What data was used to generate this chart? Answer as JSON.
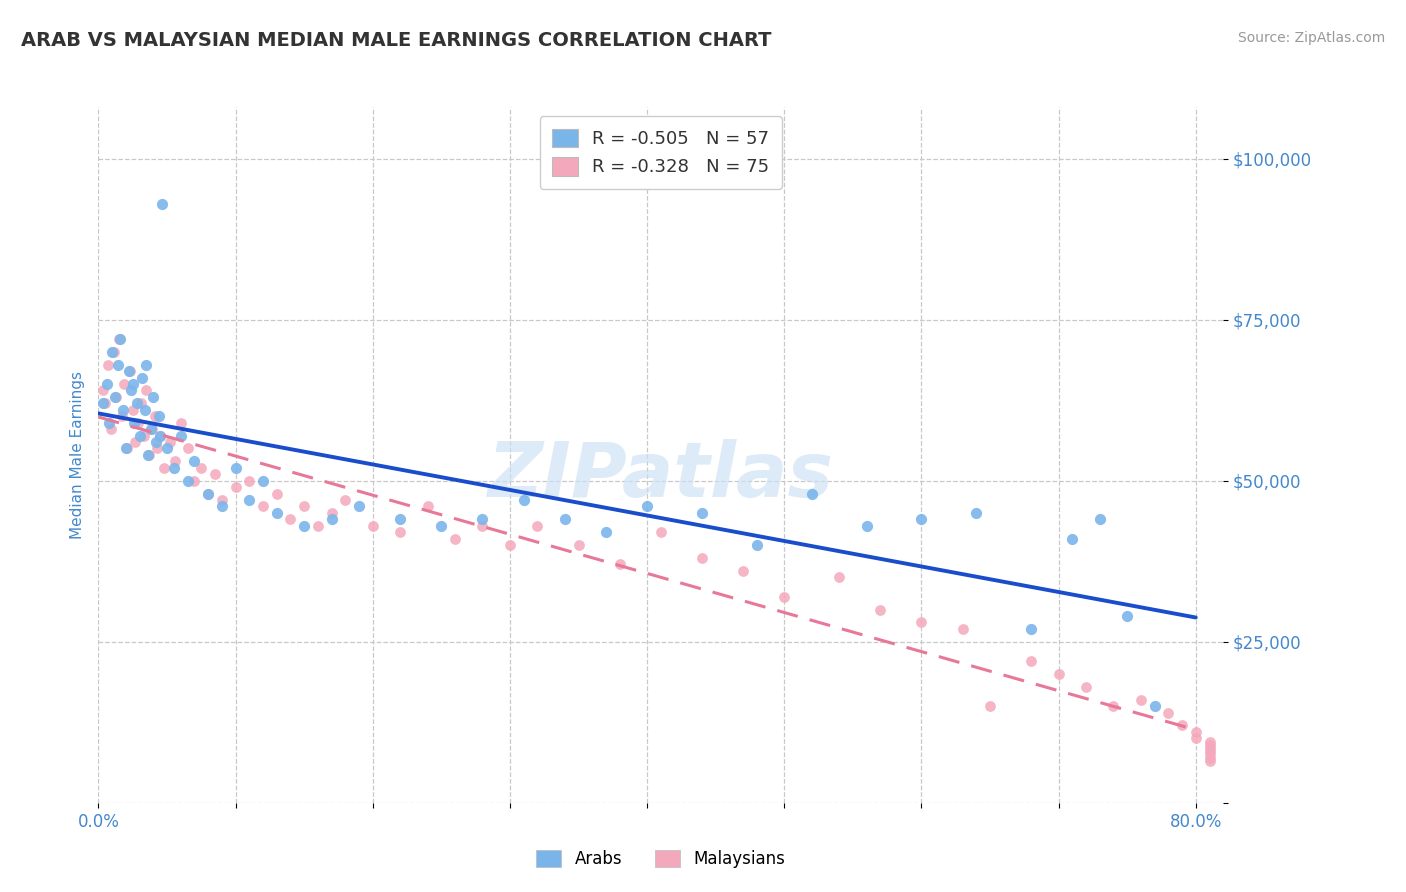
{
  "title": "ARAB VS MALAYSIAN MEDIAN MALE EARNINGS CORRELATION CHART",
  "source_text": "Source: ZipAtlas.com",
  "ylabel": "Median Male Earnings",
  "watermark": "ZIPatlas",
  "xlim": [
    0.0,
    0.82
  ],
  "ylim": [
    0,
    108000
  ],
  "xtick_positions": [
    0.0,
    0.1,
    0.2,
    0.3,
    0.4,
    0.5,
    0.6,
    0.7,
    0.8
  ],
  "xticklabels": [
    "0.0%",
    "",
    "",
    "",
    "",
    "",
    "",
    "",
    "80.0%"
  ],
  "ytick_positions": [
    0,
    25000,
    50000,
    75000,
    100000
  ],
  "yticklabels": [
    "",
    "$25,000",
    "$50,000",
    "$75,000",
    "$100,000"
  ],
  "arab_R": -0.505,
  "arab_N": 57,
  "malay_R": -0.328,
  "malay_N": 75,
  "arab_color": "#7ab5ea",
  "malay_color": "#f4a8bb",
  "arab_line_color": "#1a4dcc",
  "malay_line_color": "#e87898",
  "grid_color": "#c8c8c8",
  "title_color": "#333333",
  "tick_color": "#4488cc",
  "source_color": "#999999",
  "watermark_color": "#cce0f5",
  "legend_text_color": "#333333",
  "legend_num_color": "#3366cc",
  "arab_scatter_x": [
    0.003,
    0.006,
    0.008,
    0.01,
    0.012,
    0.014,
    0.016,
    0.018,
    0.02,
    0.022,
    0.024,
    0.026,
    0.028,
    0.03,
    0.032,
    0.034,
    0.036,
    0.038,
    0.04,
    0.042,
    0.044,
    0.046,
    0.05,
    0.055,
    0.06,
    0.065,
    0.07,
    0.08,
    0.09,
    0.1,
    0.11,
    0.12,
    0.13,
    0.15,
    0.17,
    0.19,
    0.22,
    0.25,
    0.28,
    0.31,
    0.34,
    0.37,
    0.4,
    0.44,
    0.48,
    0.52,
    0.56,
    0.6,
    0.64,
    0.68,
    0.71,
    0.73,
    0.75,
    0.77,
    0.025,
    0.035,
    0.045
  ],
  "arab_scatter_y": [
    62000,
    65000,
    59000,
    70000,
    63000,
    68000,
    72000,
    61000,
    55000,
    67000,
    64000,
    59000,
    62000,
    57000,
    66000,
    61000,
    54000,
    58000,
    63000,
    56000,
    60000,
    93000,
    55000,
    52000,
    57000,
    50000,
    53000,
    48000,
    46000,
    52000,
    47000,
    50000,
    45000,
    43000,
    44000,
    46000,
    44000,
    43000,
    44000,
    47000,
    44000,
    42000,
    46000,
    45000,
    40000,
    48000,
    43000,
    44000,
    45000,
    27000,
    41000,
    44000,
    29000,
    15000,
    65000,
    68000,
    57000
  ],
  "malay_scatter_x": [
    0.003,
    0.005,
    0.007,
    0.009,
    0.011,
    0.013,
    0.015,
    0.017,
    0.019,
    0.021,
    0.023,
    0.025,
    0.027,
    0.029,
    0.031,
    0.033,
    0.035,
    0.037,
    0.039,
    0.041,
    0.043,
    0.045,
    0.048,
    0.052,
    0.056,
    0.06,
    0.065,
    0.07,
    0.075,
    0.08,
    0.085,
    0.09,
    0.1,
    0.11,
    0.12,
    0.13,
    0.14,
    0.15,
    0.16,
    0.17,
    0.18,
    0.2,
    0.22,
    0.24,
    0.26,
    0.28,
    0.3,
    0.32,
    0.35,
    0.38,
    0.41,
    0.44,
    0.47,
    0.5,
    0.54,
    0.57,
    0.6,
    0.63,
    0.65,
    0.68,
    0.7,
    0.72,
    0.74,
    0.76,
    0.78,
    0.79,
    0.8,
    0.8,
    0.81,
    0.81,
    0.81,
    0.81,
    0.81,
    0.81,
    0.81
  ],
  "malay_scatter_y": [
    64000,
    62000,
    68000,
    58000,
    70000,
    63000,
    72000,
    60000,
    65000,
    55000,
    67000,
    61000,
    56000,
    59000,
    62000,
    57000,
    64000,
    54000,
    58000,
    60000,
    55000,
    57000,
    52000,
    56000,
    53000,
    59000,
    55000,
    50000,
    52000,
    48000,
    51000,
    47000,
    49000,
    50000,
    46000,
    48000,
    44000,
    46000,
    43000,
    45000,
    47000,
    43000,
    42000,
    46000,
    41000,
    43000,
    40000,
    43000,
    40000,
    37000,
    42000,
    38000,
    36000,
    32000,
    35000,
    30000,
    28000,
    27000,
    15000,
    22000,
    20000,
    18000,
    15000,
    16000,
    14000,
    12000,
    11000,
    10000,
    9000,
    8000,
    7000,
    8500,
    9500,
    6500,
    7500
  ]
}
